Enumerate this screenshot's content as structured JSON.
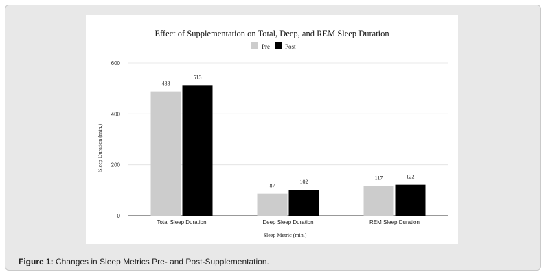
{
  "caption": {
    "label": "Figure 1:",
    "text": " Changes in Sleep Metrics Pre- and Post-Supplementation."
  },
  "chart_data": {
    "type": "bar",
    "title": "Effect of Supplementation on Total, Deep, and REM Sleep Duration",
    "xlabel": "Sleep Metric (min.)",
    "ylabel": "Sleep Duration (min.)",
    "ylim": [
      0,
      600
    ],
    "yticks": [
      "0",
      "200",
      "400",
      "600"
    ],
    "categories": [
      "Total Sleep Duration",
      "Deep Sleep Duration",
      "REM Sleep Duration"
    ],
    "series": [
      {
        "name": "Pre",
        "values": [
          488,
          87,
          117
        ],
        "color": "#cccccc"
      },
      {
        "name": "Post",
        "values": [
          513,
          102,
          122
        ],
        "color": "#000000"
      }
    ],
    "data_labels": [
      [
        "488",
        "87",
        "117"
      ],
      [
        "513",
        "102",
        "122"
      ]
    ],
    "legend": "top-center",
    "grid": true
  }
}
